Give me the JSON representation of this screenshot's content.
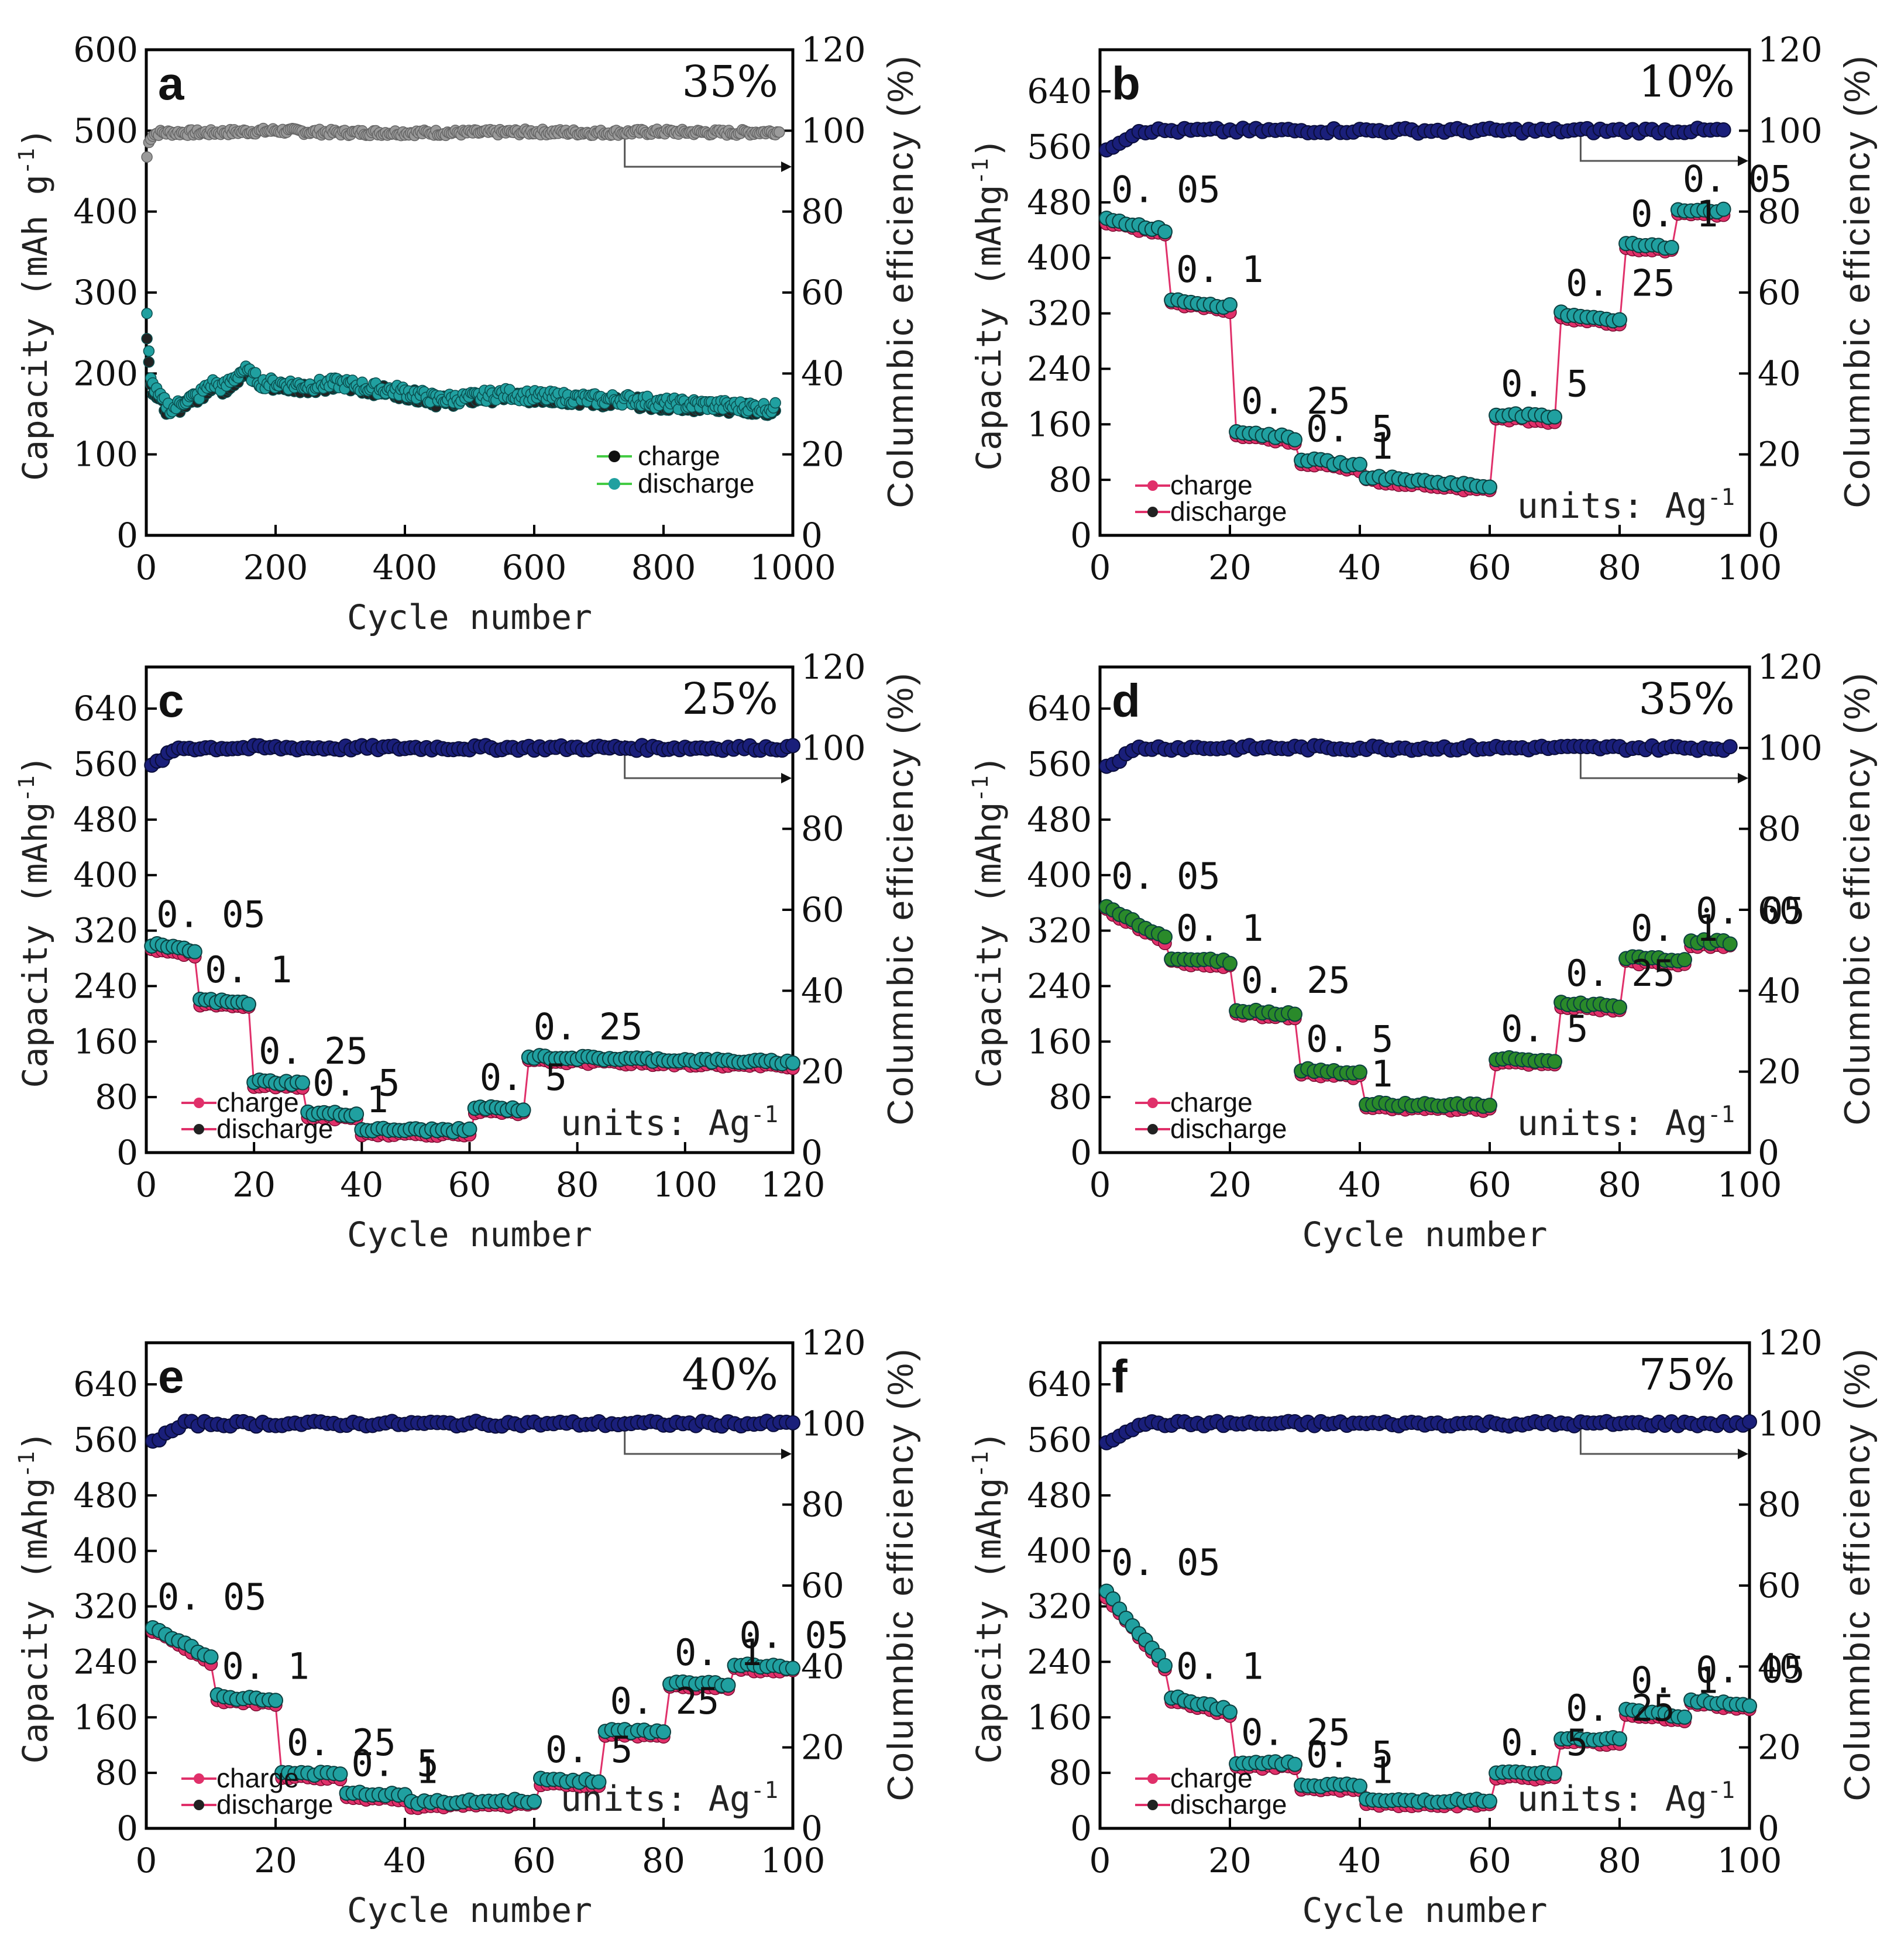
{
  "chart_data": [
    {
      "panel": "a",
      "type": "scatter",
      "percent": "35%",
      "xlabel": "Cycle number",
      "ylabel": "Capacity (mAh g-1)",
      "ylabel_right": "Columnbic efficiency (%)",
      "xlim": [
        0,
        1000
      ],
      "ylim": [
        0,
        600
      ],
      "y2lim": [
        0,
        120
      ],
      "xticks": [
        "0",
        "200",
        "400",
        "600",
        "800",
        "1000"
      ],
      "yticks": [
        "0",
        "100",
        "200",
        "300",
        "400",
        "500",
        "600"
      ],
      "y2ticks": [
        "0",
        "20",
        "40",
        "60",
        "80",
        "100",
        "120"
      ],
      "legend": [
        "charge",
        "discharge"
      ],
      "rate_labels": [],
      "units_label": "",
      "efficiency": {
        "x": [
          0,
          2,
          5,
          10,
          20,
          50,
          100,
          200,
          300,
          400,
          500,
          600,
          700,
          800,
          900,
          975
        ],
        "y": [
          92,
          95,
          98,
          99,
          99.5,
          99.5,
          99.5,
          100,
          99.5,
          99.5,
          99.5,
          99.7,
          99.5,
          99.7,
          99.5,
          99.7
        ]
      },
      "charge": {
        "x": [
          1,
          5,
          10,
          20,
          40,
          60,
          80,
          100,
          120,
          150,
          180,
          200,
          250,
          300,
          350,
          400,
          430,
          450,
          500,
          550,
          600,
          650,
          700,
          750,
          800,
          850,
          900,
          950,
          975
        ],
        "y": [
          250,
          200,
          180,
          165,
          150,
          165,
          170,
          185,
          180,
          200,
          185,
          185,
          183,
          185,
          180,
          175,
          170,
          165,
          168,
          172,
          170,
          168,
          165,
          165,
          160,
          160,
          158,
          155,
          150
        ]
      },
      "discharge": {
        "x": [
          1,
          5,
          10,
          20,
          40,
          60,
          80,
          100,
          120,
          150,
          180,
          200,
          250,
          300,
          350,
          400,
          430,
          450,
          500,
          550,
          600,
          650,
          700,
          750,
          800,
          850,
          900,
          950,
          975
        ],
        "y": [
          270,
          210,
          185,
          170,
          155,
          168,
          172,
          188,
          183,
          205,
          188,
          188,
          185,
          188,
          182,
          178,
          172,
          168,
          170,
          175,
          172,
          170,
          168,
          168,
          163,
          162,
          160,
          158,
          157
        ]
      },
      "arrow": "right"
    },
    {
      "panel": "b",
      "type": "scatter",
      "percent": "10%",
      "xlabel": "",
      "ylabel": "Capacity (mAhg-1)",
      "ylabel_right": "Columnbic efficiency (%)",
      "xlim": [
        0,
        100
      ],
      "ylim": [
        0,
        700
      ],
      "y2lim": [
        0,
        120
      ],
      "xticks": [
        "0",
        "20",
        "40",
        "60",
        "80",
        "100"
      ],
      "yticks": [
        "0",
        "80",
        "160",
        "240",
        "320",
        "400",
        "480",
        "560",
        "640"
      ],
      "y2ticks": [
        "0",
        "20",
        "40",
        "60",
        "80",
        "100",
        "120"
      ],
      "legend": [
        "charge",
        "discharge"
      ],
      "rate_labels": [
        "0. 05",
        "0. 1",
        "0. 25",
        "0. 5",
        "1",
        "0. 5",
        "0. 25",
        "0. 1",
        "0. 05"
      ],
      "units_label": "units: Ag-1",
      "steps": [
        [
          1,
          10,
          455,
          440
        ],
        [
          11,
          20,
          340,
          330
        ],
        [
          21,
          30,
          150,
          140
        ],
        [
          31,
          40,
          110,
          100
        ],
        [
          41,
          60,
          85,
          70
        ],
        [
          61,
          70,
          175,
          170
        ],
        [
          71,
          80,
          320,
          310
        ],
        [
          81,
          88,
          420,
          415
        ],
        [
          89,
          96,
          470,
          468
        ]
      ],
      "eff_base": 100,
      "arrow": "right"
    },
    {
      "panel": "c",
      "type": "scatter",
      "percent": "25%",
      "xlabel": "Cycle number",
      "ylabel": "Capacity (mAhg-1)",
      "ylabel_right": "Columnbic efficiency (%)",
      "xlim": [
        0,
        120
      ],
      "ylim": [
        0,
        700
      ],
      "y2lim": [
        0,
        120
      ],
      "xticks": [
        "0",
        "20",
        "40",
        "60",
        "80",
        "100",
        "120"
      ],
      "yticks": [
        "0",
        "80",
        "160",
        "240",
        "320",
        "400",
        "480",
        "560",
        "640"
      ],
      "y2ticks": [
        "0",
        "20",
        "40",
        "60",
        "80",
        "100",
        "120"
      ],
      "legend": [
        "charge",
        "discharge"
      ],
      "rate_labels": [
        "0. 05",
        "0. 1",
        "0. 25",
        "0. 5",
        "1",
        "0. 5",
        "0. 25"
      ],
      "units_label": "units: Ag-1",
      "steps": [
        [
          1,
          9,
          300,
          290
        ],
        [
          10,
          19,
          220,
          215
        ],
        [
          20,
          29,
          103,
          100
        ],
        [
          30,
          39,
          57,
          55
        ],
        [
          40,
          60,
          33,
          32
        ],
        [
          61,
          70,
          65,
          62
        ],
        [
          71,
          120,
          138,
          130
        ]
      ],
      "eff_base": 100,
      "arrow": "right"
    },
    {
      "panel": "d",
      "type": "scatter",
      "percent": "35%",
      "xlabel": "Cycle number",
      "ylabel": "Capacity (mAhg-1)",
      "ylabel_right": "Columnbic efficiency (%)",
      "xlim": [
        0,
        100
      ],
      "ylim": [
        0,
        700
      ],
      "y2lim": [
        0,
        120
      ],
      "xticks": [
        "0",
        "20",
        "40",
        "60",
        "80",
        "100"
      ],
      "yticks": [
        "0",
        "80",
        "160",
        "240",
        "320",
        "400",
        "480",
        "560",
        "640"
      ],
      "y2ticks": [
        "0",
        "20",
        "40",
        "60",
        "80",
        "100",
        "120"
      ],
      "legend": [
        "charge",
        "discharge"
      ],
      "rate_labels": [
        "0. 05",
        "0. 1",
        "0. 25",
        "0. 5",
        "1",
        "0. 5",
        "0. 25",
        "0. 1",
        "0. 05"
      ],
      "units_label": "units: Ag-1",
      "steps": [
        [
          1,
          10,
          355,
          310
        ],
        [
          11,
          20,
          280,
          275
        ],
        [
          21,
          30,
          205,
          200
        ],
        [
          31,
          40,
          120,
          115
        ],
        [
          41,
          60,
          70,
          68
        ],
        [
          61,
          70,
          135,
          132
        ],
        [
          71,
          80,
          215,
          212
        ],
        [
          81,
          90,
          280,
          278
        ],
        [
          91,
          97,
          305,
          303
        ]
      ],
      "eff_base": 100,
      "arrow": "right"
    },
    {
      "panel": "e",
      "type": "scatter",
      "percent": "40%",
      "xlabel": "Cycle number",
      "ylabel": "Capacity (mAhg-1)",
      "ylabel_right": "Columnbic efficiency (%)",
      "xlim": [
        0,
        100
      ],
      "ylim": [
        0,
        700
      ],
      "y2lim": [
        0,
        120
      ],
      "xticks": [
        "0",
        "20",
        "40",
        "60",
        "80",
        "100"
      ],
      "yticks": [
        "0",
        "80",
        "160",
        "240",
        "320",
        "400",
        "480",
        "560",
        "640"
      ],
      "y2ticks": [
        "0",
        "20",
        "40",
        "60",
        "80",
        "100",
        "120"
      ],
      "legend": [
        "charge",
        "discharge"
      ],
      "rate_labels": [
        "0. 05",
        "0. 1",
        "0. 25",
        "0. 5",
        "1",
        "0. 5",
        "0. 25",
        "0. 1",
        "0. 05"
      ],
      "units_label": "units: Ag-1",
      "steps": [
        [
          1,
          10,
          290,
          245
        ],
        [
          11,
          20,
          190,
          185
        ],
        [
          21,
          30,
          80,
          78
        ],
        [
          31,
          40,
          50,
          48
        ],
        [
          41,
          60,
          37,
          40
        ],
        [
          61,
          70,
          70,
          68
        ],
        [
          71,
          80,
          140,
          140
        ],
        [
          81,
          90,
          210,
          208
        ],
        [
          91,
          100,
          235,
          232
        ]
      ],
      "eff_base": 100,
      "arrow": "right"
    },
    {
      "panel": "f",
      "type": "scatter",
      "percent": "75%",
      "xlabel": "Cycle number",
      "ylabel": "Capacity (mAhg-1)",
      "ylabel_right": "Columnbic efficiency (%)",
      "xlim": [
        0,
        100
      ],
      "ylim": [
        0,
        700
      ],
      "y2lim": [
        0,
        120
      ],
      "xticks": [
        "0",
        "20",
        "40",
        "60",
        "80",
        "100"
      ],
      "yticks": [
        "0",
        "80",
        "160",
        "240",
        "320",
        "400",
        "480",
        "560",
        "640"
      ],
      "y2ticks": [
        "0",
        "20",
        "40",
        "60",
        "80",
        "100",
        "120"
      ],
      "legend": [
        "charge",
        "discharge"
      ],
      "rate_labels": [
        "0. 05",
        "0. 1",
        "0. 25",
        "0. 5",
        "1",
        "0. 5",
        "0. 25",
        "0. 1",
        "0. 05"
      ],
      "units_label": "units: Ag-1",
      "steps": [
        [
          1,
          10,
          340,
          235
        ],
        [
          11,
          20,
          190,
          170
        ],
        [
          21,
          30,
          95,
          93
        ],
        [
          31,
          40,
          63,
          62
        ],
        [
          41,
          60,
          40,
          40
        ],
        [
          61,
          70,
          80,
          78
        ],
        [
          71,
          80,
          130,
          128
        ],
        [
          81,
          90,
          170,
          162
        ],
        [
          91,
          100,
          185,
          178
        ]
      ],
      "eff_base": 100,
      "arrow": "right"
    }
  ],
  "colors": {
    "charge": "#e0306a",
    "discharge": "#20a0a0",
    "efficiency": "#1a1f7a",
    "efficiency_a": "#9a9a9a",
    "discharge_d": "#2a8a2a",
    "legend_line_a": "#44cc44"
  }
}
